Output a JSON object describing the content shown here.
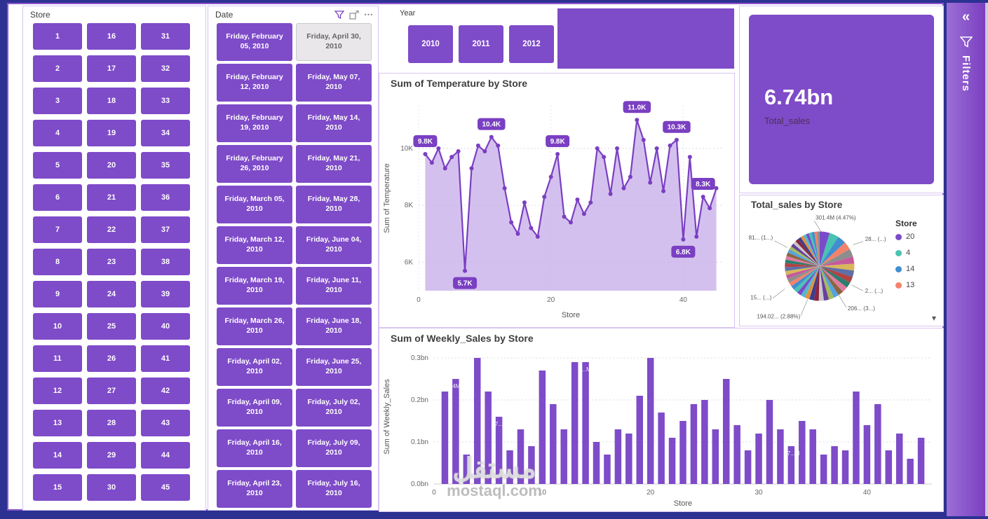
{
  "theme": {
    "purple": "#7e4bc9",
    "purple_line": "#7a3fc2",
    "area_fill": "#c5abe8",
    "selected_gray": "#e9e7ea",
    "frame_navy": "#2c3192",
    "panel_border": "#d8c4f2"
  },
  "store_slicer": {
    "title": "Store",
    "values": [
      1,
      2,
      3,
      4,
      5,
      6,
      7,
      8,
      9,
      10,
      11,
      12,
      13,
      14,
      15,
      16,
      17,
      18,
      19,
      20,
      21,
      22,
      23,
      24,
      25,
      26,
      27,
      28,
      29,
      30,
      31,
      32,
      33,
      34,
      35,
      36,
      37,
      38,
      39,
      40,
      41,
      42,
      43,
      44,
      45
    ]
  },
  "date_slicer": {
    "title": "Date",
    "more_icon": "⋯",
    "columns": [
      [
        "Friday, February 05, 2010",
        "Friday, February 12, 2010",
        "Friday, February 19, 2010",
        "Friday, February 26, 2010",
        "Friday, March 05, 2010",
        "Friday, March 12, 2010",
        "Friday, March 19, 2010",
        "Friday, March 26, 2010",
        "Friday, April 02, 2010",
        "Friday, April 09, 2010",
        "Friday, April 16, 2010",
        "Friday, April 23, 2010"
      ],
      [
        "Friday, April 30, 2010",
        "Friday, May 07, 2010",
        "Friday, May 14, 2010",
        "Friday, May 21, 2010",
        "Friday, May 28, 2010",
        "Friday, June 04, 2010",
        "Friday, June 11, 2010",
        "Friday, June 18, 2010",
        "Friday, June 25, 2010",
        "Friday, July 02, 2010",
        "Friday, July 09, 2010",
        "Friday, July 16, 2010"
      ]
    ],
    "selected": "Friday, April 30, 2010"
  },
  "year_slicer": {
    "title": "Year",
    "options": [
      "2010",
      "2011",
      "2012"
    ]
  },
  "card": {
    "value": "6.74bn",
    "label": "Total_sales"
  },
  "filters_panel": {
    "collapse_icon": "«",
    "label": "Filters"
  },
  "watermark": {
    "arabic": "مستقل",
    "latin": "mostaql.com"
  },
  "chart_data": [
    {
      "type": "area",
      "title": "Sum of Temperature by Store",
      "xlabel": "Store",
      "ylabel": "Sum of Temperature",
      "unit": "K",
      "ylim": [
        5,
        11.5
      ],
      "yticks": [
        "6K",
        "8K",
        "10K"
      ],
      "ytick_values": [
        6,
        8,
        10
      ],
      "xticks": [
        0,
        20,
        40
      ],
      "values": [
        9.8,
        9.5,
        10.0,
        9.3,
        9.7,
        9.9,
        5.7,
        9.3,
        10.1,
        9.9,
        10.4,
        10.1,
        8.6,
        7.4,
        7.0,
        8.1,
        7.2,
        6.9,
        8.3,
        9.0,
        9.8,
        7.6,
        7.4,
        8.2,
        7.7,
        8.1,
        10.0,
        9.7,
        8.4,
        10.0,
        8.6,
        9.0,
        11.0,
        10.3,
        8.8,
        10.0,
        8.5,
        10.1,
        10.3,
        6.8,
        9.7,
        6.9,
        8.3,
        7.9,
        8.6
      ],
      "labels": [
        {
          "x": 1,
          "text": "9.8K",
          "pos": "above"
        },
        {
          "x": 7,
          "text": "5.7K",
          "pos": "below"
        },
        {
          "x": 11,
          "text": "10.4K",
          "pos": "above"
        },
        {
          "x": 21,
          "text": "9.8K",
          "pos": "above"
        },
        {
          "x": 33,
          "text": "11.0K",
          "pos": "above"
        },
        {
          "x": 39,
          "text": "10.3K",
          "pos": "above"
        },
        {
          "x": 40,
          "text": "6.8K",
          "pos": "below"
        },
        {
          "x": 43,
          "text": "8.3K",
          "pos": "above"
        }
      ]
    },
    {
      "type": "pie",
      "title": "Total_sales by Store",
      "legend_title": "Store",
      "expand_icon": "▾",
      "legend": [
        {
          "label": "20",
          "color": "#7a4bc8"
        },
        {
          "label": "4",
          "color": "#49c3b1"
        },
        {
          "label": "14",
          "color": "#3f8ed0"
        },
        {
          "label": "13",
          "color": "#f2826a"
        }
      ],
      "callouts": [
        "301.4M (4.47%)",
        "28... (...)",
        "81... (1...)",
        "2... (...)",
        "15... (...)",
        "206... (3...)",
        "194.02... (2.88%)"
      ],
      "values": [
        4.47,
        4.1,
        3.8,
        3.6,
        3.5,
        3.2,
        3.05,
        2.88,
        2.7,
        2.6,
        2.5,
        2.4,
        2.35,
        2.3,
        2.25,
        2.2,
        2.15,
        2.1,
        2.05,
        2.0,
        1.95,
        1.92,
        1.9,
        1.85,
        1.82,
        1.8,
        1.75,
        1.72,
        1.7,
        1.65,
        1.62,
        1.6,
        1.55,
        1.52,
        1.5,
        1.45,
        1.42,
        1.4,
        1.35,
        1.32,
        1.3,
        1.25,
        1.22,
        1.2,
        1.15
      ],
      "colors": [
        "#7a4bc8",
        "#49c3b1",
        "#3f8ed0",
        "#f2826a",
        "#8d8d8d",
        "#c55a9b",
        "#d9b65c",
        "#5d6fa8",
        "#b04343",
        "#2e7d6e",
        "#e07ba0",
        "#8a6640",
        "#54a3e0",
        "#a4bb5e",
        "#6b3fa0",
        "#c9c9c9",
        "#8b2440",
        "#3c3c8f",
        "#e0913f",
        "#55b8d0"
      ]
    },
    {
      "type": "bar",
      "title": "Sum of Weekly_Sales by Store",
      "xlabel": "Store",
      "ylabel": "Sum of Weekly_Sales",
      "unit": "bn",
      "ylim": [
        0,
        0.32
      ],
      "yticks": [
        "0.0bn",
        "0.1bn",
        "0.2bn",
        "0.3bn"
      ],
      "ytick_values": [
        0,
        0.1,
        0.2,
        0.3
      ],
      "xticks": [
        0,
        10,
        20,
        30,
        40
      ],
      "values": [
        0.22,
        0.25,
        0.07,
        0.3,
        0.22,
        0.16,
        0.08,
        0.13,
        0.09,
        0.27,
        0.19,
        0.13,
        0.29,
        0.29,
        0.1,
        0.07,
        0.13,
        0.12,
        0.21,
        0.3,
        0.17,
        0.11,
        0.15,
        0.19,
        0.2,
        0.13,
        0.25,
        0.14,
        0.08,
        0.12,
        0.2,
        0.13,
        0.09,
        0.15,
        0.13,
        0.07,
        0.09,
        0.08,
        0.22,
        0.14,
        0.19,
        0.08,
        0.12,
        0.06,
        0.11
      ],
      "bar_labels": [
        {
          "x": 2,
          "text": "4M"
        },
        {
          "x": 6,
          "text": "57...M"
        },
        {
          "x": 14,
          "text": "...M"
        },
        {
          "x": 33,
          "text": "37...M"
        }
      ]
    }
  ]
}
